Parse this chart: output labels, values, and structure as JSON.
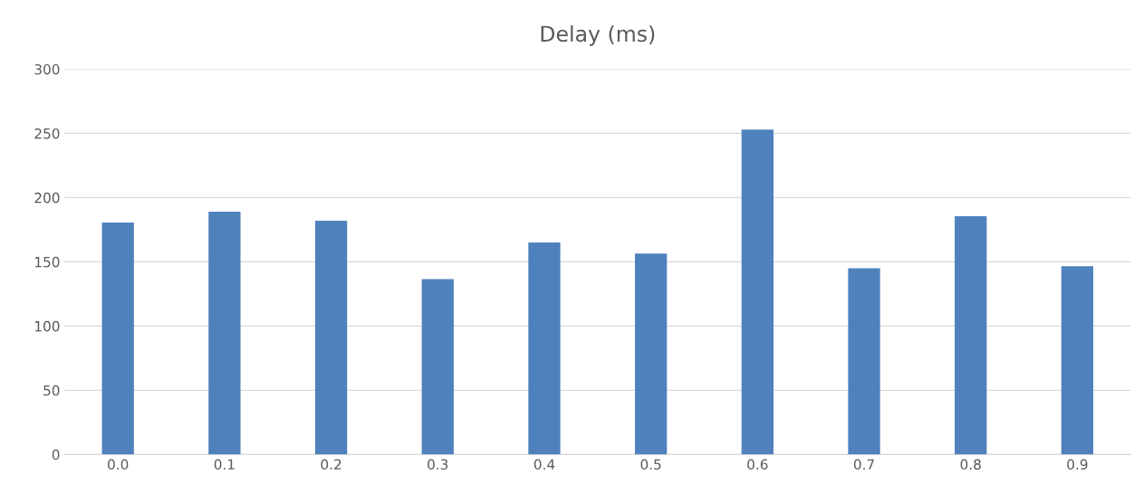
{
  "chart_data": {
    "type": "bar",
    "title": "Delay (ms)",
    "categories": [
      "0.0",
      "0.1",
      "0.2",
      "0.3",
      "0.4",
      "0.5",
      "0.6",
      "0.7",
      "0.8",
      "0.9"
    ],
    "values": [
      180.5,
      189,
      182,
      136.5,
      165,
      156.5,
      253,
      145,
      185.5,
      146.5
    ],
    "color": "#4f81bd",
    "ylim": [
      0,
      300
    ],
    "yticks": [
      0,
      50,
      100,
      150,
      200,
      250,
      300
    ],
    "grid": "y",
    "legend": false
  }
}
